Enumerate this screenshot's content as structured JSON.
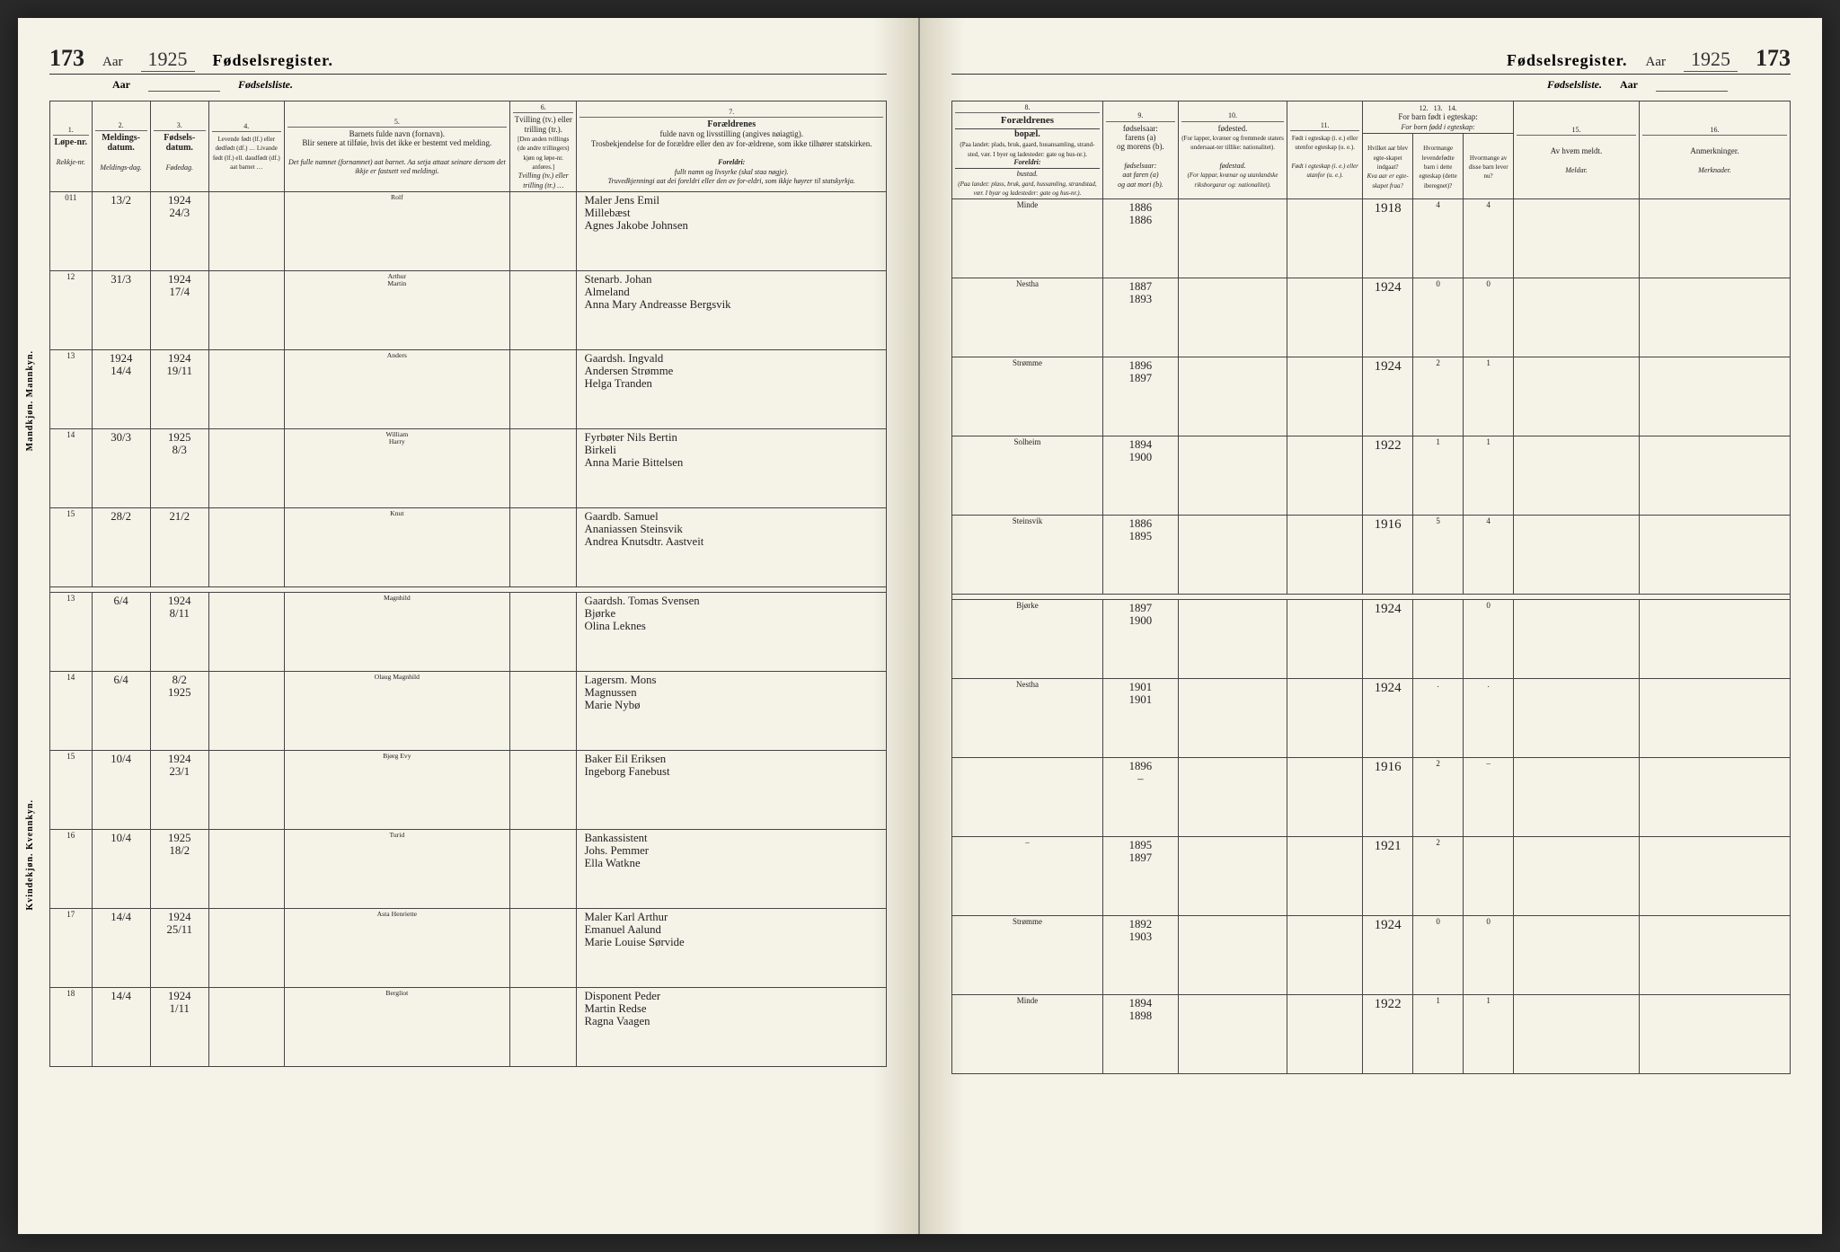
{
  "meta": {
    "page_number": "173",
    "year": "1925",
    "register_title": "Fødselsregister.",
    "list_title": "Fødselsliste.",
    "aar_label": "Aar",
    "page_bg": "#f5f2e8",
    "ink": "#3a3a3a"
  },
  "columns_left": {
    "c1": {
      "num": "1.",
      "main": "Løpe-nr.",
      "sub": "Rekkje-nr."
    },
    "c2": {
      "num": "2.",
      "main": "Meldings-datum.",
      "sub": "Meldings-dag."
    },
    "c3": {
      "num": "3.",
      "main": "Fødsels-datum.",
      "sub": "Fødedag."
    },
    "c4": {
      "num": "4.",
      "tiny": "Levende født (lf.) eller dødfødt (df.) … Livande født (lf.) ell. daudfødt (df.) aat barnet …"
    },
    "c5": {
      "num": "5.",
      "main_lines": [
        "Barnets fulde navn (fornavn).",
        "Blir senere at tilføie, hvis det ikke er bestemt ved melding."
      ],
      "sub_lines": [
        "Det fulle namnet (fornamnet) aat barnet. Aa setja attaat seinare dersom det ikkje er fastsett ved meldingi."
      ]
    },
    "c6": {
      "num": "6.",
      "main": "Tvilling (tv.) eller trilling (tr.).",
      "tiny": "[Den anden tvillings (de andre trillingers) kjøn og løpe-nr. anføres.]",
      "sub": "Tvilling (tv.) eller trilling (tr.) …"
    },
    "c7": {
      "num": "7.",
      "title": "Forældrenes",
      "main_lines": [
        "fulde navn og livsstilling (angives nøiagtig).",
        "Trosbekjendelse for de forældre eller den av for-ældrene, som ikke tilhører statskirken."
      ],
      "sub_title": "Foreldri:",
      "sub_lines": [
        "fullt namn og livsyrke (skal staa nøgje).",
        "Truvedkjenningi aat dei foreldri eller den av for-eldri, som ikkje høyrer til statskyrkja."
      ]
    }
  },
  "columns_right": {
    "c8": {
      "num": "8.",
      "group": "Forældrenes",
      "main": "bopæl.",
      "tiny": "(Paa landet: plads, bruk, gaard, husansamling, strand-sted, vær. I byer og ladesteder: gate og hus-nr.).",
      "sub_group": "Foreldri:",
      "sub": "bustad.",
      "sub_tiny": "(Paa landet: plass, bruk, gard, hussamling, strandstad, vær. I byar og ladesteder: gate og hus-nr.)."
    },
    "c9": {
      "num": "9.",
      "main": "fødselsaar:",
      "lines": [
        "farens (a)",
        "og morens (b)."
      ],
      "sub": "fødselsaar:",
      "sub_lines": [
        "aat faren (a)",
        "og aat mori (b)."
      ]
    },
    "c10": {
      "num": "10.",
      "main": "fødested.",
      "tiny": "(For lapper, kvæner og fremmede staters undersaat-ter tillike: nationalitet).",
      "sub": "fødestad.",
      "sub_tiny": "(For lappar, kvænar og utanlandske riksborgarar og: nationalitet)."
    },
    "c11": {
      "num": "11.",
      "main": "Født i egteskap (i. e.) eller utenfor egteskap (u. e.).",
      "sub": "Født i egteskap (i. e.) eller utanfor (u. e.)."
    },
    "group12": "For barn født i egteskap:",
    "group12_sub": "For born fødd i egteskap:",
    "c12": {
      "num": "12.",
      "main": "Hvilket aar blev egte-skapet indgaat?",
      "sub": "Kva aar er egte-skapet fraa?"
    },
    "c13": {
      "num": "13.",
      "tiny": "Hvormange levendefødte barn i dette egteskap (dette iberegnet)?",
      "sub_tiny": "Kor mange livande fødde born i dette egteskapet?"
    },
    "c14": {
      "num": "14.",
      "tiny": "Hvormange av disse barn lever nu?",
      "sub_tiny": "Kor mange av desse borni lever?"
    },
    "c15": {
      "num": "15.",
      "main": "Av hvem meldt.",
      "sub": "Meldar."
    },
    "c16": {
      "num": "16.",
      "main": "Anmerkninger.",
      "sub": "Merknader."
    }
  },
  "side_labels": {
    "male": "Mandkjøn. Mannkyn.",
    "female": "Kvindekjøn. Kvennkyn."
  },
  "rows_male": [
    {
      "nr": "011",
      "meld": "13/2",
      "fod": "1924\n24/3",
      "lf": "",
      "name": "Rolf",
      "parents": "Maler Jens Emil\nMillebæst\nAgnes Jakobe Johnsen",
      "bosted": "Minde",
      "aar": "1886\n1886",
      "fsted": "",
      "egte": "",
      "e_aar": "1918",
      "n1": "4",
      "n2": "4"
    },
    {
      "nr": "12",
      "meld": "31/3",
      "fod": "1924\n17/4",
      "lf": "",
      "name": "Arthur\nMartin",
      "parents": "Stenarb. Johan\nAlmeland\nAnna Mary Andreasse Bergsvik",
      "bosted": "Nestha",
      "aar": "1887\n1893",
      "fsted": "",
      "egte": "",
      "e_aar": "1924",
      "n1": "0",
      "n2": "0"
    },
    {
      "nr": "13",
      "meld": "1924\n14/4",
      "fod": "1924\n19/11",
      "lf": "",
      "name": "Anders",
      "parents": "Gaardsh. Ingvald\nAndersen Strømme\nHelga Tranden",
      "bosted": "Strømme",
      "aar": "1896\n1897",
      "fsted": "",
      "egte": "",
      "e_aar": "1924",
      "n1": "2",
      "n2": "1"
    },
    {
      "nr": "14",
      "meld": "30/3",
      "fod": "1925\n8/3",
      "lf": "",
      "name": "William\nHarry",
      "parents": "Fyrbøter Nils Bertin\nBirkeli\nAnna Marie Bittelsen",
      "bosted": "Solheim",
      "aar": "1894\n1900",
      "fsted": "",
      "egte": "",
      "e_aar": "1922",
      "n1": "1",
      "n2": "1"
    },
    {
      "nr": "15",
      "meld": "28/2",
      "fod": "21/2",
      "lf": "",
      "name": "Knut",
      "parents": "Gaardb. Samuel\nAnaniassen Steinsvik\nAndrea Knutsdtr. Aastveit",
      "bosted": "Steinsvik",
      "aar": "1886\n1895",
      "fsted": "",
      "egte": "",
      "e_aar": "1916",
      "n1": "5",
      "n2": "4"
    }
  ],
  "rows_female": [
    {
      "nr": "13",
      "meld": "6/4",
      "fod": "1924\n8/11",
      "lf": "",
      "name": "Magnhild",
      "parents": "Gaardsh. Tomas Svensen\nBjørke\nOlina Leknes",
      "bosted": "Bjørke",
      "aar": "1897\n1900",
      "fsted": "",
      "egte": "",
      "e_aar": "1924",
      "n1": "",
      "n2": "0"
    },
    {
      "nr": "14",
      "meld": "6/4",
      "fod": "8/2\n1925",
      "lf": "",
      "name": "Olaug Magnhild",
      "parents": "Lagersm. Mons\nMagnussen\nMarie Nybø",
      "bosted": "Nestha",
      "aar": "1901\n1901",
      "fsted": "",
      "egte": "",
      "e_aar": "1924",
      "n1": ".",
      "n2": "."
    },
    {
      "nr": "15",
      "meld": "10/4",
      "fod": "1924\n23/1",
      "lf": "",
      "name": "Bjørg Evy",
      "parents": "Baker Eil Eriksen\nIngeborg Fanebust",
      "bosted": "",
      "aar": "1896\n–",
      "fsted": "",
      "egte": "",
      "e_aar": "1916",
      "n1": "2",
      "n2": "–"
    },
    {
      "nr": "16",
      "meld": "10/4",
      "fod": "1925\n18/2",
      "lf": "",
      "name": "Turid",
      "parents": "Bankassistent\nJohs. Pemmer\nElla Watkne",
      "bosted": "–",
      "aar": "1895\n1897",
      "fsted": "",
      "egte": "",
      "e_aar": "1921",
      "n1": "2",
      "n2": ""
    },
    {
      "nr": "17",
      "meld": "14/4",
      "fod": "1924\n25/11",
      "lf": "",
      "name": "Asta Henriette",
      "parents": "Maler Karl Arthur\nEmanuel Aalund\nMarie Louise Sørvide",
      "bosted": "Strømme",
      "aar": "1892\n1903",
      "fsted": "",
      "egte": "",
      "e_aar": "1924",
      "n1": "0",
      "n2": "0"
    },
    {
      "nr": "18",
      "meld": "14/4",
      "fod": "1924\n1/11",
      "lf": "",
      "name": "Bergliot",
      "parents": "Disponent Peder\nMartin Redse\nRagna Vaagen",
      "bosted": "Minde",
      "aar": "1894\n1898",
      "fsted": "",
      "egte": "",
      "e_aar": "1922",
      "n1": "1",
      "n2": "1"
    }
  ]
}
